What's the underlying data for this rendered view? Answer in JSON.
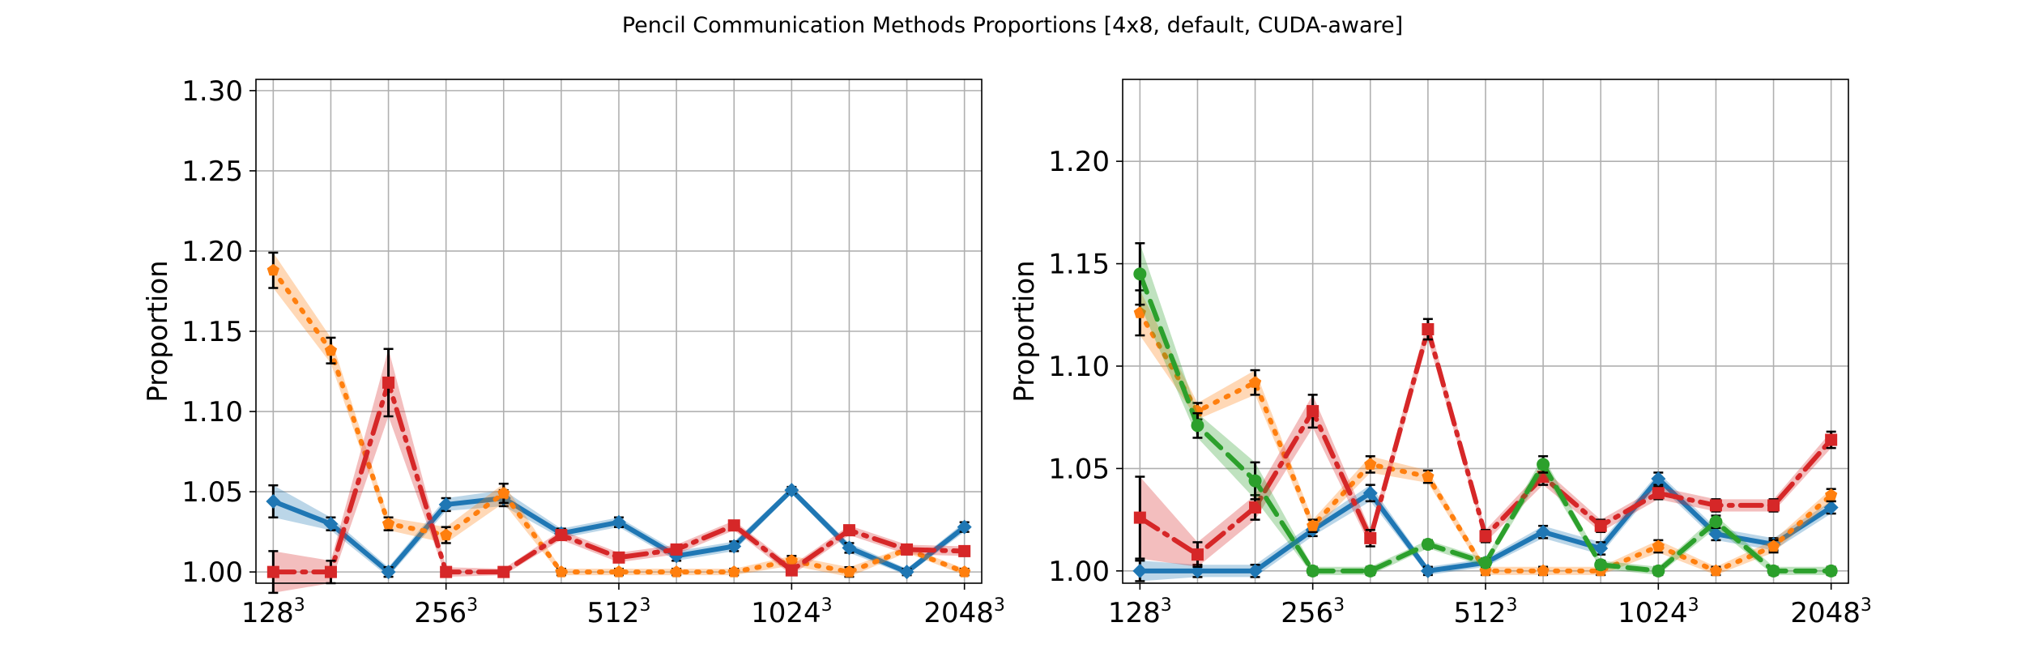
{
  "title": "Pencil Communication Methods Proportions [4x8, default, CUDA-aware]",
  "colors": {
    "blue": "#1f77b4",
    "orange": "#ff7f0e",
    "red": "#d62728",
    "green": "#2ca02c"
  },
  "chart_data": [
    {
      "type": "line",
      "ylabel": "Proportion",
      "ylim": [
        0.993,
        1.307
      ],
      "yticks": [
        "1.00",
        "1.05",
        "1.10",
        "1.15",
        "1.20",
        "1.25",
        "1.30"
      ],
      "xticks": [
        {
          "base": "128",
          "exp": "3",
          "at": 0
        },
        {
          "base": "256",
          "exp": "3",
          "at": 3
        },
        {
          "base": "512",
          "exp": "3",
          "at": 6
        },
        {
          "base": "1024",
          "exp": "3",
          "at": 9
        },
        {
          "base": "2048",
          "exp": "3",
          "at": 12
        }
      ],
      "xlim": [
        -0.3,
        12.3
      ],
      "grid": true,
      "series": [
        {
          "color": "blue",
          "marker": "diamond",
          "dash": "solid",
          "values": [
            1.044,
            1.03,
            1.0,
            1.042,
            1.046,
            1.024,
            1.031,
            1.01,
            1.016,
            1.051,
            1.015,
            1.0,
            1.028
          ],
          "errors": [
            0.01,
            0.004,
            0.003,
            0.004,
            0.005,
            0.003,
            0.003,
            0.003,
            0.003,
            0.002,
            0.003,
            0.002,
            0.003
          ]
        },
        {
          "color": "orange",
          "marker": "pentagon",
          "dash": "dotted",
          "values": [
            1.188,
            1.138,
            1.03,
            1.023,
            1.049,
            1.0,
            1.0,
            1.0,
            1.0,
            1.007,
            1.0,
            1.014,
            1.0
          ],
          "errors": [
            0.011,
            0.008,
            0.004,
            0.005,
            0.006,
            0.002,
            0.002,
            0.002,
            0.002,
            0.003,
            0.003,
            0.002,
            0.002
          ]
        },
        {
          "color": "red",
          "marker": "square",
          "dash": "dashdot",
          "values": [
            1.0,
            1.0,
            1.118,
            1.0,
            1.0,
            1.023,
            1.009,
            1.014,
            1.029,
            1.001,
            1.026,
            1.014,
            1.013
          ],
          "errors": [
            0.013,
            0.007,
            0.021,
            0.003,
            0.002,
            0.003,
            0.003,
            0.003,
            0.003,
            0.003,
            0.003,
            0.003,
            0.003
          ]
        }
      ]
    },
    {
      "type": "line",
      "ylabel": "Proportion",
      "ylim": [
        0.994,
        1.24
      ],
      "yticks": [
        "1.00",
        "1.05",
        "1.10",
        "1.15",
        "1.20"
      ],
      "xticks": [
        {
          "base": "128",
          "exp": "3",
          "at": 0
        },
        {
          "base": "256",
          "exp": "3",
          "at": 3
        },
        {
          "base": "512",
          "exp": "3",
          "at": 6
        },
        {
          "base": "1024",
          "exp": "3",
          "at": 9
        },
        {
          "base": "2048",
          "exp": "3",
          "at": 12
        }
      ],
      "xlim": [
        -0.3,
        12.3
      ],
      "grid": true,
      "series": [
        {
          "color": "blue",
          "marker": "diamond",
          "dash": "solid",
          "values": [
            1.0,
            1.0,
            1.0,
            1.02,
            1.038,
            1.0,
            1.004,
            1.019,
            1.011,
            1.045,
            1.018,
            1.013,
            1.031
          ],
          "errors": [
            0.005,
            0.003,
            0.003,
            0.003,
            0.004,
            0.002,
            0.002,
            0.003,
            0.003,
            0.003,
            0.003,
            0.003,
            0.003
          ]
        },
        {
          "color": "orange",
          "marker": "pentagon",
          "dash": "dotted",
          "values": [
            1.126,
            1.078,
            1.092,
            1.022,
            1.052,
            1.046,
            1.0,
            1.0,
            1.0,
            1.012,
            1.0,
            1.012,
            1.037
          ],
          "errors": [
            0.011,
            0.004,
            0.006,
            0.003,
            0.004,
            0.003,
            0.002,
            0.002,
            0.002,
            0.003,
            0.002,
            0.003,
            0.003
          ]
        },
        {
          "color": "red",
          "marker": "square",
          "dash": "dashdot",
          "values": [
            1.026,
            1.008,
            1.031,
            1.078,
            1.016,
            1.118,
            1.017,
            1.046,
            1.022,
            1.038,
            1.032,
            1.032,
            1.064
          ],
          "errors": [
            0.02,
            0.006,
            0.006,
            0.008,
            0.004,
            0.005,
            0.003,
            0.004,
            0.003,
            0.003,
            0.003,
            0.003,
            0.004
          ]
        },
        {
          "color": "green",
          "marker": "circle",
          "dash": "dashed",
          "values": [
            1.145,
            1.071,
            1.044,
            1.0,
            1.0,
            1.013,
            1.004,
            1.052,
            1.003,
            1.0,
            1.024,
            1.0,
            1.0
          ],
          "errors": [
            0.015,
            0.006,
            0.009,
            0.002,
            0.002,
            0.002,
            0.002,
            0.004,
            0.002,
            0.002,
            0.003,
            0.002,
            0.002
          ]
        }
      ]
    }
  ]
}
